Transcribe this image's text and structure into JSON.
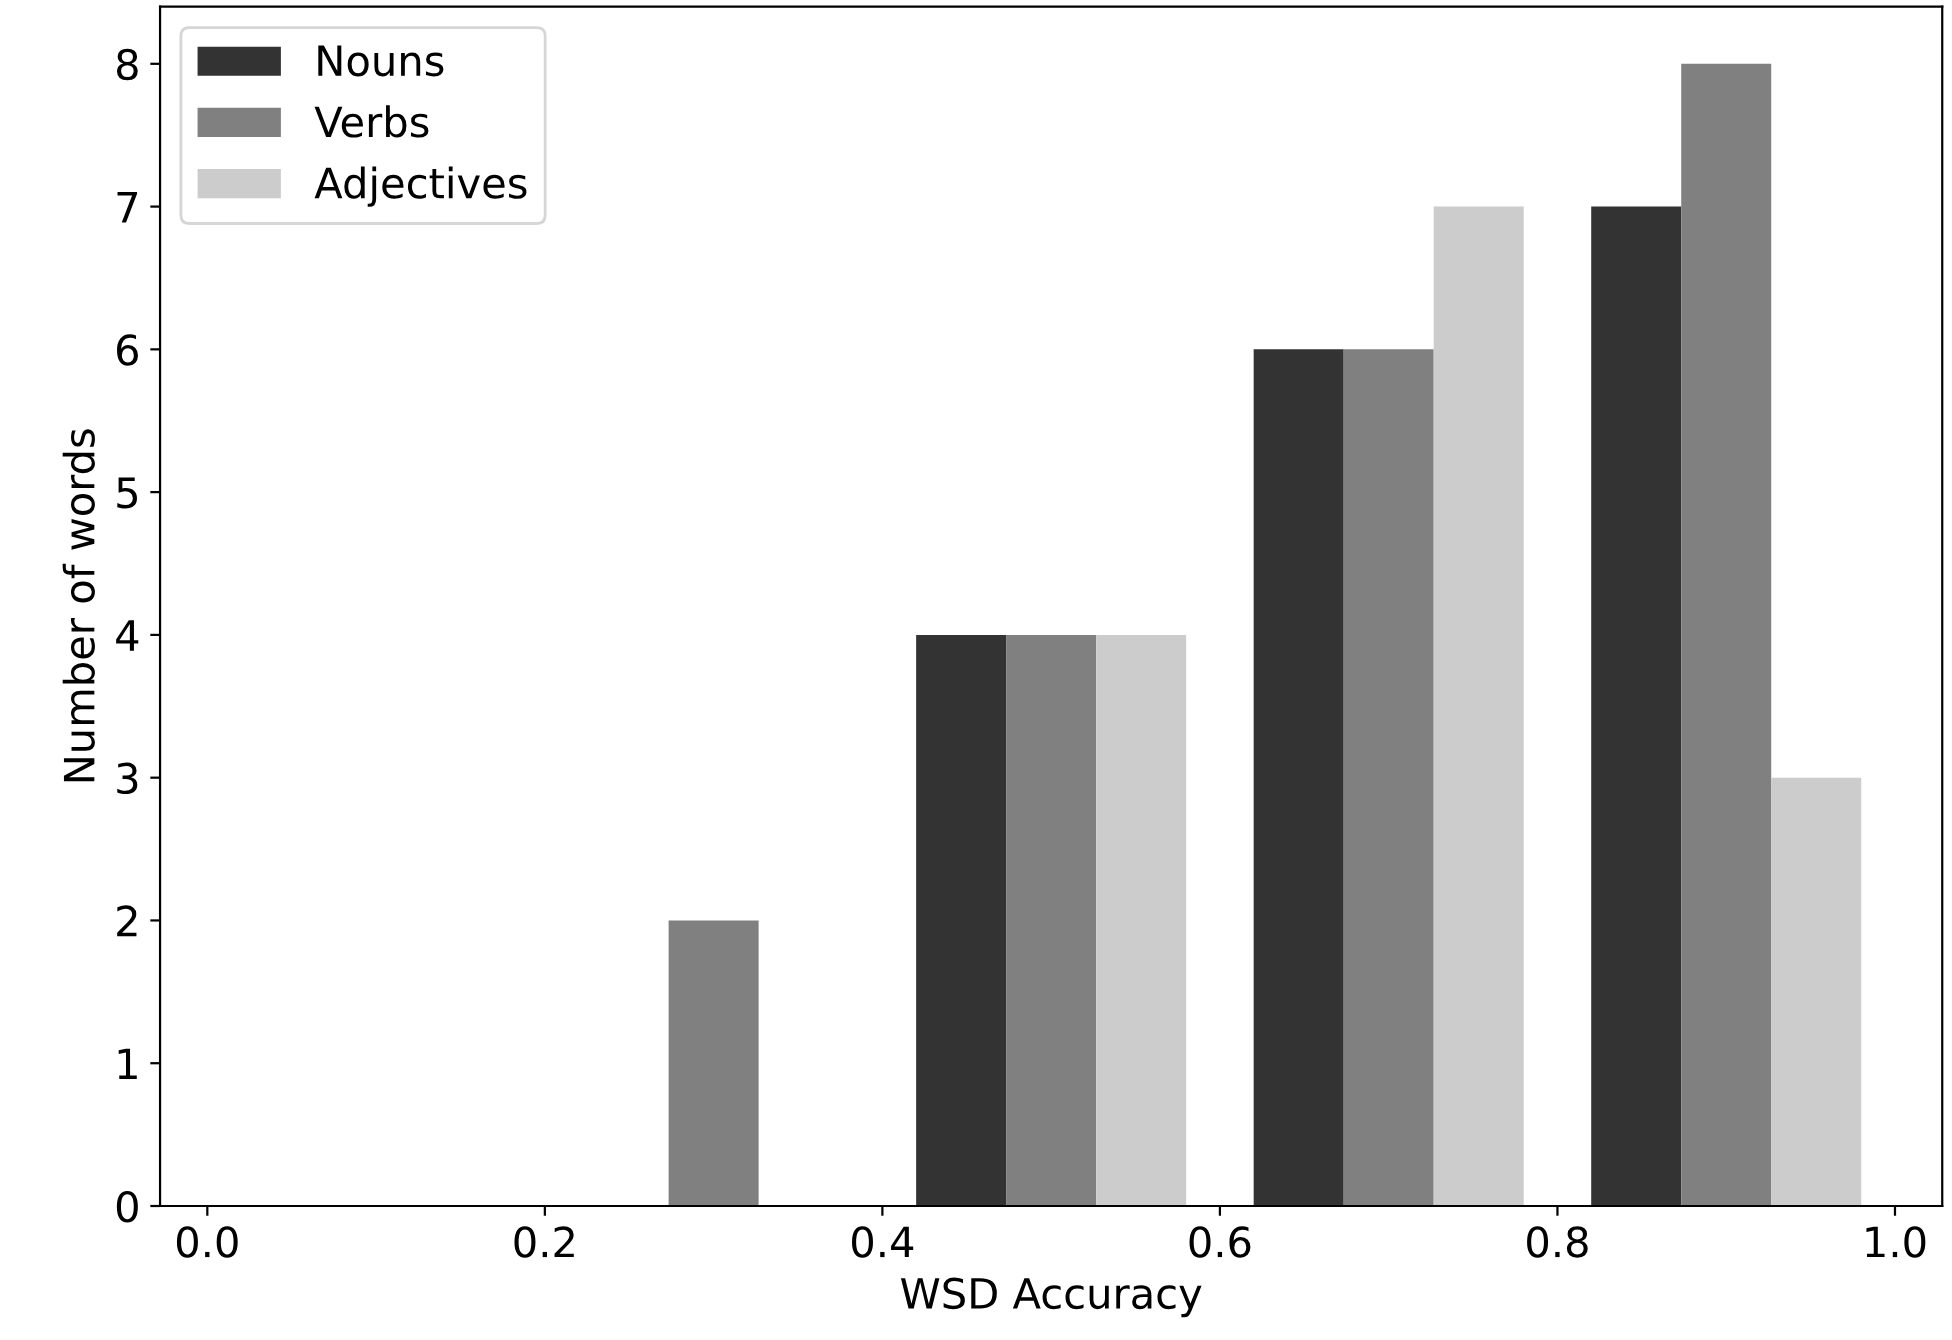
{
  "chart_data": {
    "type": "histogram",
    "xlabel": "WSD Accuracy",
    "ylabel": "Number of words",
    "bins": [
      0.0,
      0.2,
      0.4,
      0.6,
      0.8,
      1.0
    ],
    "series": [
      {
        "name": "Nouns",
        "color": "#333333",
        "values": [
          0,
          0,
          4,
          6,
          7
        ]
      },
      {
        "name": "Verbs",
        "color": "#808080",
        "values": [
          0,
          2,
          4,
          6,
          8
        ]
      },
      {
        "name": "Adjectives",
        "color": "#cccccc",
        "values": [
          0,
          0,
          4,
          7,
          3
        ]
      }
    ],
    "xlim": [
      -0.028,
      1.028
    ],
    "xticks": [
      {
        "value": 0,
        "label": "0.0"
      },
      0.2,
      0.4,
      0.6,
      0.8,
      {
        "value": 1,
        "label": "1.0"
      }
    ],
    "ylim": [
      0,
      8.4
    ],
    "yticks": [
      0,
      1,
      2,
      3,
      4,
      5,
      6,
      7,
      8
    ],
    "grid": false,
    "legend": "top left"
  }
}
